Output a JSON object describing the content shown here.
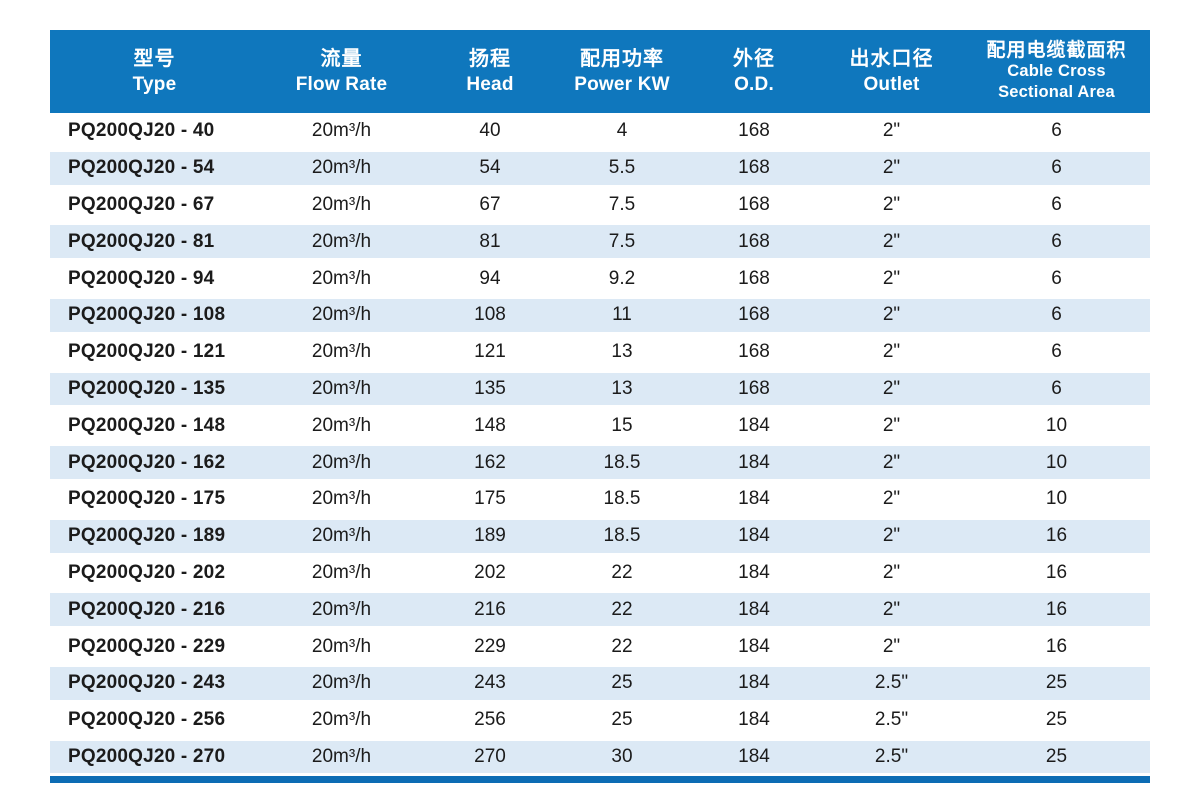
{
  "table": {
    "columns": [
      {
        "zh": "型号",
        "en_lines": [
          "Type"
        ]
      },
      {
        "zh": "流量",
        "en_lines": [
          "Flow Rate"
        ]
      },
      {
        "zh": "扬程",
        "en_lines": [
          "Head"
        ]
      },
      {
        "zh": "配用功率",
        "en_lines": [
          "Power KW"
        ]
      },
      {
        "zh": "外径",
        "en_lines": [
          "O.D."
        ]
      },
      {
        "zh": "出水口径",
        "en_lines": [
          "Outlet"
        ]
      },
      {
        "zh": "配用电缆截面积",
        "en_lines": [
          "Cable Cross",
          "Sectional Area"
        ]
      }
    ],
    "rows": [
      [
        "PQ200QJ20 - 40",
        "20m³/h",
        "40",
        "4",
        "168",
        "2\"",
        "6"
      ],
      [
        "PQ200QJ20 - 54",
        "20m³/h",
        "54",
        "5.5",
        "168",
        "2\"",
        "6"
      ],
      [
        "PQ200QJ20 - 67",
        "20m³/h",
        "67",
        "7.5",
        "168",
        "2\"",
        "6"
      ],
      [
        "PQ200QJ20 - 81",
        "20m³/h",
        "81",
        "7.5",
        "168",
        "2\"",
        "6"
      ],
      [
        "PQ200QJ20 - 94",
        "20m³/h",
        "94",
        "9.2",
        "168",
        "2\"",
        "6"
      ],
      [
        "PQ200QJ20 - 108",
        "20m³/h",
        "108",
        "11",
        "168",
        "2\"",
        "6"
      ],
      [
        "PQ200QJ20 - 121",
        "20m³/h",
        "121",
        "13",
        "168",
        "2\"",
        "6"
      ],
      [
        "PQ200QJ20 - 135",
        "20m³/h",
        "135",
        "13",
        "168",
        "2\"",
        "6"
      ],
      [
        "PQ200QJ20 - 148",
        "20m³/h",
        "148",
        "15",
        "184",
        "2\"",
        "10"
      ],
      [
        "PQ200QJ20 - 162",
        "20m³/h",
        "162",
        "18.5",
        "184",
        "2\"",
        "10"
      ],
      [
        "PQ200QJ20 - 175",
        "20m³/h",
        "175",
        "18.5",
        "184",
        "2\"",
        "10"
      ],
      [
        "PQ200QJ20 - 189",
        "20m³/h",
        "189",
        "18.5",
        "184",
        "2\"",
        "16"
      ],
      [
        "PQ200QJ20 - 202",
        "20m³/h",
        "202",
        "22",
        "184",
        "2\"",
        "16"
      ],
      [
        "PQ200QJ20 - 216",
        "20m³/h",
        "216",
        "22",
        "184",
        "2\"",
        "16"
      ],
      [
        "PQ200QJ20 - 229",
        "20m³/h",
        "229",
        "22",
        "184",
        "2\"",
        "16"
      ],
      [
        "PQ200QJ20 - 243",
        "20m³/h",
        "243",
        "25",
        "184",
        "2.5\"",
        "25"
      ],
      [
        "PQ200QJ20 - 256",
        "20m³/h",
        "256",
        "25",
        "184",
        "2.5\"",
        "25"
      ],
      [
        "PQ200QJ20 - 270",
        "20m³/h",
        "270",
        "30",
        "184",
        "2.5\"",
        "25"
      ]
    ]
  },
  "colors": {
    "header_bg": "#0f77bd",
    "stripe_bg": "#dce9f5",
    "bottom_bar": "#0c6cb4",
    "body_text": "#1b1b1b",
    "header_text": "#ffffff"
  }
}
